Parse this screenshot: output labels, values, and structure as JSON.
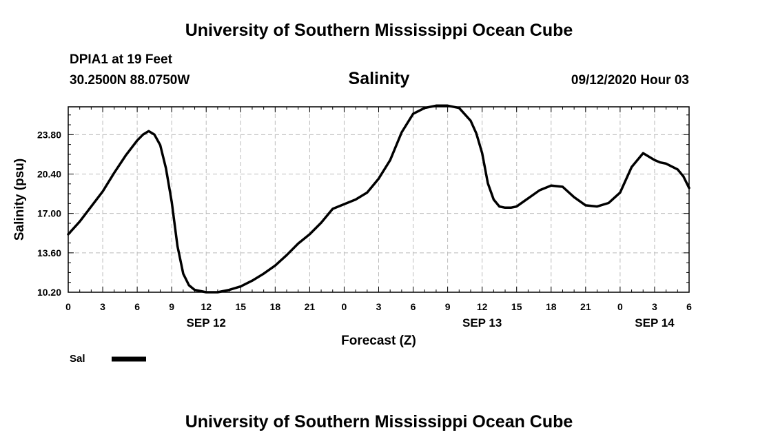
{
  "header": {
    "top_title": "University of Southern Mississippi Ocean Cube",
    "station": "DPIA1 at 19 Feet",
    "coords": "30.2500N 88.0750W",
    "datetime": "09/12/2020 Hour 03"
  },
  "footer": {
    "bottom_title": "University of Southern Mississippi Ocean Cube"
  },
  "colors": {
    "line": "#000000",
    "grid": "#bbbbbb",
    "background": "#ffffff"
  },
  "chart_data": {
    "type": "line",
    "title": "Salinity",
    "xlabel": "Forecast (Z)",
    "ylabel": "Salinity (psu)",
    "ylim": [
      10.2,
      26.2
    ],
    "xlim": [
      0,
      54
    ],
    "y_ticks": [
      "10.20",
      "13.60",
      "17.00",
      "20.40",
      "23.80"
    ],
    "y_tick_values": [
      10.2,
      13.6,
      17.0,
      20.4,
      23.8
    ],
    "x_ticks": [
      "0",
      "3",
      "6",
      "9",
      "12",
      "15",
      "18",
      "21",
      "0",
      "3",
      "6",
      "9",
      "12",
      "15",
      "18",
      "21",
      "0",
      "3",
      "6"
    ],
    "day_labels": [
      "SEP 12",
      "SEP 13",
      "SEP 14"
    ],
    "day_label_hours": [
      12,
      36,
      51
    ],
    "grid": true,
    "legend_position": "bottom-left",
    "series": [
      {
        "name": "Sal",
        "x": [
          0,
          1,
          2,
          3,
          4,
          5,
          6,
          6.5,
          7,
          7.5,
          8,
          8.5,
          9,
          9.5,
          10,
          10.5,
          11,
          12,
          13,
          14,
          15,
          16,
          17,
          18,
          19,
          20,
          21,
          22,
          23,
          23.5,
          24,
          25,
          26,
          27,
          28,
          29,
          30,
          31,
          32,
          33,
          34,
          35,
          35.5,
          36,
          36.5,
          37,
          37.5,
          38,
          38.5,
          39,
          40,
          41,
          42,
          43,
          44,
          45,
          46,
          47,
          48,
          49,
          50,
          51,
          51.5,
          52,
          53,
          53.5,
          54
        ],
        "y": [
          15.2,
          16.3,
          17.6,
          18.9,
          20.5,
          22.0,
          23.3,
          23.8,
          24.1,
          23.8,
          22.9,
          20.9,
          18.0,
          14.2,
          11.8,
          10.8,
          10.4,
          10.2,
          10.2,
          10.4,
          10.7,
          11.2,
          11.8,
          12.5,
          13.4,
          14.4,
          15.2,
          16.2,
          17.4,
          17.6,
          17.8,
          18.2,
          18.8,
          20.0,
          21.6,
          24.0,
          25.6,
          26.1,
          26.3,
          26.3,
          26.1,
          25.0,
          23.9,
          22.2,
          19.6,
          18.2,
          17.6,
          17.5,
          17.5,
          17.6,
          18.3,
          19.0,
          19.4,
          19.3,
          18.4,
          17.7,
          17.6,
          17.9,
          18.8,
          21.0,
          22.2,
          21.6,
          21.4,
          21.3,
          20.8,
          20.2,
          19.2
        ]
      }
    ]
  }
}
